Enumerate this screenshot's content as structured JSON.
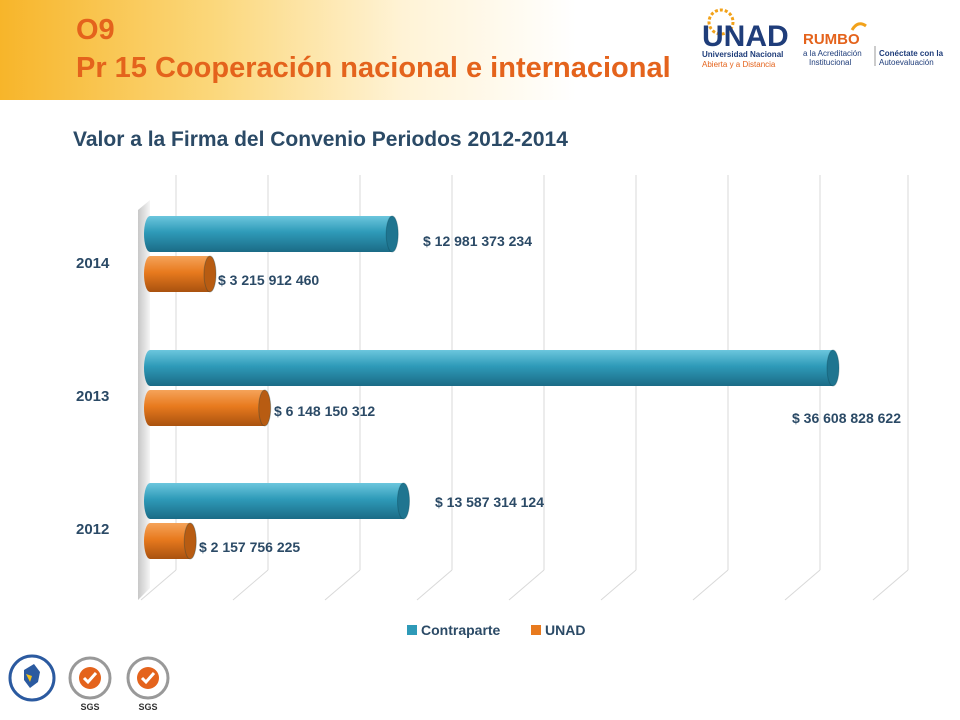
{
  "slide": {
    "code": "O9",
    "title": "Pr 15 Cooperación nacional e internacional"
  },
  "logos": {
    "unad_wordmark": "UNAD",
    "unad_line1": "Universidad Nacional",
    "unad_line2": "Abierta y a Distancia",
    "rumbo": "RUMBO",
    "rumbo_line1": "a la Acreditación",
    "rumbo_line2": "Institucional",
    "conectate_line1": "Conéctate con la",
    "conectate_line2": "Autoevaluación",
    "sgs": "SGS"
  },
  "colors": {
    "contraparte": "#2e9ab8",
    "unad": "#e87a1e",
    "title": "#e4631c",
    "chart_title": "#2b4a66"
  },
  "chart_data": {
    "type": "bar",
    "orientation": "horizontal",
    "title": "Valor a la Firma del Convenio Periodos 2012-2014",
    "categories": [
      "2014",
      "2013",
      "2012"
    ],
    "series": [
      {
        "name": "Contraparte",
        "values": [
          12981373234,
          36608828622,
          13587314124
        ],
        "labels": [
          "$ 12 981 373 234",
          "$ 36 608 828 622",
          "$ 13 587 314 124"
        ]
      },
      {
        "name": "UNAD",
        "values": [
          3215912460,
          6148150312,
          2157756225
        ],
        "labels": [
          "$ 3 215 912 460",
          "$ 6 148 150 312",
          "$ 2 157 756 225"
        ]
      }
    ],
    "xlim": [
      0,
      40000000000
    ],
    "grid": true,
    "legend": "bottom"
  }
}
